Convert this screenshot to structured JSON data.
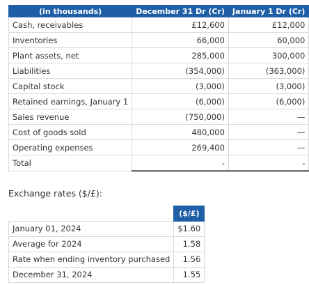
{
  "table1": {
    "header": [
      "(in thousands)",
      "December 31 Dr (Cr)",
      "January 1 Dr (Cr)"
    ],
    "rows": [
      [
        "Cash, receivables",
        "£12,600",
        "£12,000"
      ],
      [
        "Inventories",
        "66,000",
        "60,000"
      ],
      [
        "Plant assets, net",
        "285,000",
        "300,000"
      ],
      [
        "Liabilities",
        "(354,000)",
        "(363,000)"
      ],
      [
        "Capital stock",
        "(3,000)",
        "(3,000)"
      ],
      [
        "Retained earnings, January 1",
        "(6,000)",
        "(6,000)"
      ],
      [
        "Sales revenue",
        "(750,000)",
        "—"
      ],
      [
        "Cost of goods sold",
        "480,000",
        "—"
      ],
      [
        "Operating expenses",
        "269,400",
        "—"
      ],
      [
        "Total",
        "-",
        "-"
      ]
    ]
  },
  "rates_title": "Exchange rates ($/£):",
  "table2": {
    "header": "($/£)",
    "rows": [
      [
        "January 01, 2024",
        "$1.60"
      ],
      [
        "Average for 2024",
        "1.58"
      ],
      [
        "Rate when ending inventory purchased",
        "1.56"
      ],
      [
        "December 31, 2024",
        "1.55"
      ]
    ]
  }
}
